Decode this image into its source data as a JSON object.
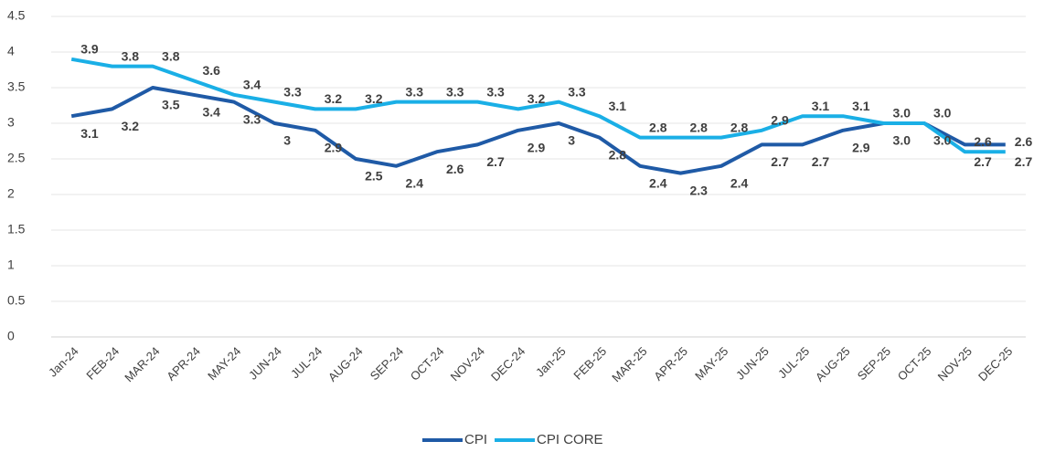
{
  "chart_data": {
    "type": "line",
    "categories": [
      "Jan-24",
      "FEB-24",
      "MAR-24",
      "APR-24",
      "MAY-24",
      "JUN-24",
      "JUL-24",
      "AUG-24",
      "SEP-24",
      "OCT-24",
      "NOV-24",
      "DEC-24",
      "Jan-25",
      "FEB-25",
      "MAR-25",
      "APR-25",
      "MAY-25",
      "JUN-25",
      "JUL-25",
      "AUG-25",
      "SEP-25",
      "OCT-25",
      "NOV-25",
      "DEC-25"
    ],
    "series": [
      {
        "name": "CPI",
        "color": "#1f5aa6",
        "values": [
          3.1,
          3.2,
          3.5,
          3.4,
          3.3,
          3,
          2.9,
          2.5,
          2.4,
          2.6,
          2.7,
          2.9,
          3,
          2.8,
          2.4,
          2.3,
          2.4,
          2.7,
          2.7,
          2.9,
          3.0,
          3.0,
          2.7,
          2.7
        ],
        "value_labels": [
          "3.1",
          "3.2",
          "3.5",
          "3.4",
          "3.3",
          "3",
          "2.9",
          "2.5",
          "2.4",
          "2.6",
          "2.7",
          "2.9",
          "3",
          "2.8",
          "2.4",
          "2.3",
          "2.4",
          "2.7",
          "2.7",
          "2.9",
          "3.0",
          "3.0",
          "2.7",
          "2.7"
        ]
      },
      {
        "name": "CPI CORE",
        "color": "#1aafe6",
        "values": [
          3.9,
          3.8,
          3.8,
          3.6,
          3.4,
          3.3,
          3.2,
          3.2,
          3.3,
          3.3,
          3.3,
          3.2,
          3.3,
          3.1,
          2.8,
          2.8,
          2.8,
          2.9,
          3.1,
          3.1,
          3.0,
          3.0,
          2.6,
          2.6
        ],
        "value_labels": [
          "3.9",
          "3.8",
          "3.8",
          "3.6",
          "3.4",
          "3.3",
          "3.2",
          "3.2",
          "3.3",
          "3.3",
          "3.3",
          "3.2",
          "3.3",
          "3.1",
          "2.8",
          "2.8",
          "2.8",
          "2.9",
          "3.1",
          "3.1",
          "3.0",
          "3.0",
          "2.6",
          "2.6"
        ]
      }
    ],
    "ylim": [
      0,
      4.5
    ],
    "yticks": [
      0,
      0.5,
      1,
      1.5,
      2,
      2.5,
      3,
      3.5,
      4,
      4.5
    ],
    "grid": true,
    "legend": "bottom"
  }
}
